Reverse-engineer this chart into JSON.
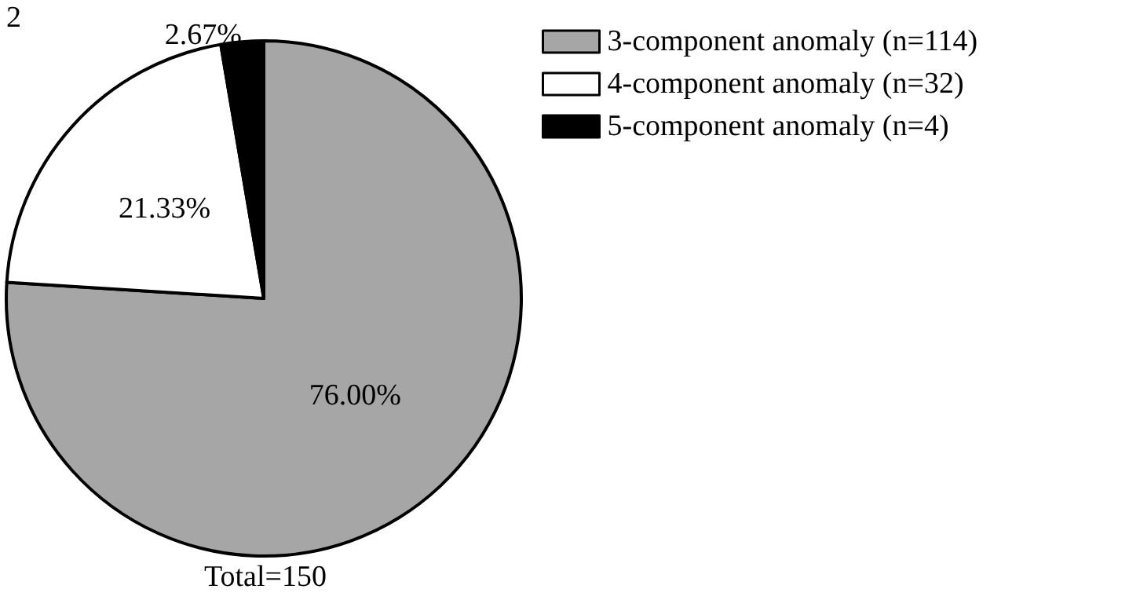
{
  "chart_data": {
    "type": "pie",
    "categories": [
      "3-component anomaly (n=114)",
      "4-component anomaly (n=32)",
      "5-component anomaly (n=4)"
    ],
    "values": [
      76,
      21.33,
      2.67
    ],
    "value_labels": [
      "76.00%",
      "21.33%",
      "2.67%"
    ],
    "colors": [
      "#a6a6a6",
      "#ffffff",
      "#000000"
    ],
    "legend": "top right",
    "annotations": [
      "2",
      "Total=150"
    ]
  }
}
